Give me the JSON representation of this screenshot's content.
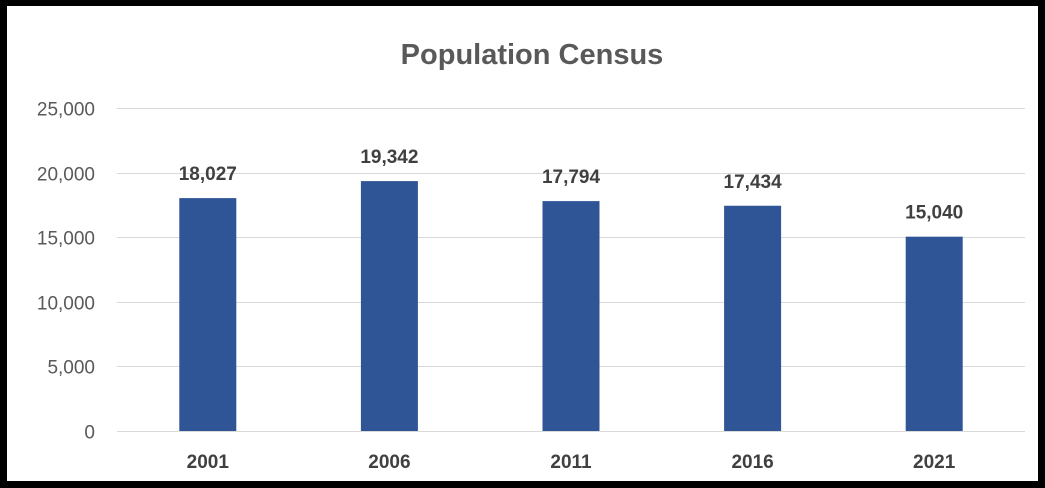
{
  "chart_data": {
    "type": "bar",
    "title": "Population Census",
    "categories": [
      "2001",
      "2006",
      "2011",
      "2016",
      "2021"
    ],
    "values": [
      18027,
      19342,
      17794,
      17434,
      15040
    ],
    "value_labels": [
      "18,027",
      "19,342",
      "17,794",
      "17,434",
      "15,040"
    ],
    "xlabel": "",
    "ylabel": "",
    "ylim": [
      0,
      25000
    ],
    "yticks": [
      0,
      5000,
      10000,
      15000,
      20000,
      25000
    ],
    "ytick_labels": [
      "0",
      "5,000",
      "10,000",
      "15,000",
      "20,000",
      "25,000"
    ],
    "grid": true,
    "legend": "none",
    "bar_color": "#2f5597"
  }
}
